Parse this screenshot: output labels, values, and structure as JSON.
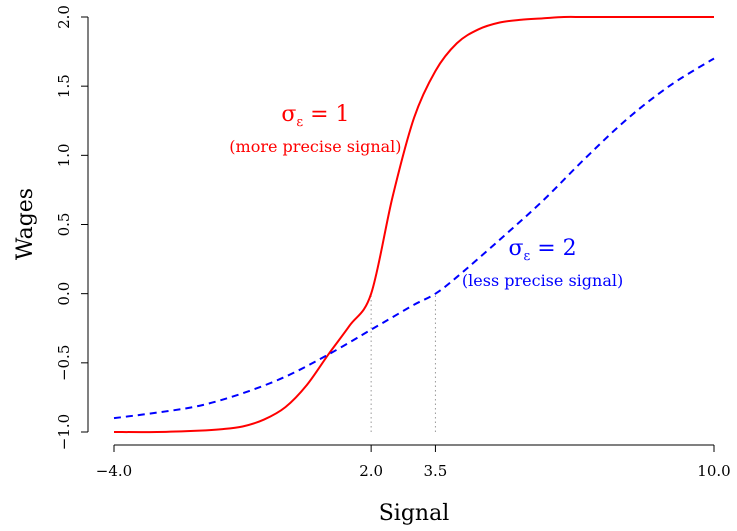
{
  "chart_data": {
    "type": "line",
    "xlabel": "Signal",
    "ylabel": "Wages",
    "xlim": [
      -4.0,
      10.0
    ],
    "ylim": [
      -1.0,
      2.0
    ],
    "x_ticks": [
      -4.0,
      2.0,
      3.5,
      10.0
    ],
    "x_tick_labels": [
      "−4.0",
      "2.0",
      "3.5",
      "10.0"
    ],
    "y_ticks": [
      -1.0,
      -0.5,
      0.0,
      0.5,
      1.0,
      1.5,
      2.0
    ],
    "y_tick_labels": [
      "−1.0",
      "−0.5",
      "0.0",
      "0.5",
      "1.0",
      "1.5",
      "2.0"
    ],
    "grid": false,
    "series": [
      {
        "color": "#ff0000",
        "dash": "solid",
        "x": [
          -4.0,
          -3.0,
          -2.0,
          -1.5,
          -1.0,
          -0.5,
          0.0,
          0.5,
          1.0,
          1.5,
          2.0,
          2.5,
          3.0,
          3.5,
          4.0,
          4.5,
          5.0,
          5.5,
          6.0,
          6.5,
          7.0,
          8.0,
          9.0,
          10.0
        ],
        "y": [
          -1.0,
          -1.0,
          -0.99,
          -0.98,
          -0.96,
          -0.91,
          -0.82,
          -0.66,
          -0.44,
          -0.23,
          0.0,
          0.7,
          1.27,
          1.61,
          1.81,
          1.91,
          1.96,
          1.98,
          1.99,
          2.0,
          2.0,
          2.0,
          2.0,
          2.0
        ]
      },
      {
        "color": "#0000ff",
        "dash": "dashed",
        "x": [
          -4.0,
          -3.0,
          -2.0,
          -1.0,
          0.0,
          1.0,
          2.0,
          2.5,
          3.0,
          3.5,
          4.0,
          5.0,
          6.0,
          7.0,
          8.0,
          9.0,
          10.0
        ],
        "y": [
          -0.9,
          -0.86,
          -0.81,
          -0.72,
          -0.6,
          -0.44,
          -0.26,
          -0.17,
          -0.08,
          0.0,
          0.12,
          0.39,
          0.67,
          0.98,
          1.27,
          1.51,
          1.7
        ]
      }
    ],
    "reference_lines": [
      {
        "x": 2.0,
        "y_from": -1.0,
        "y_to": 0.0,
        "style": "dotted"
      },
      {
        "x": 3.5,
        "y_from": -1.0,
        "y_to": 0.0,
        "style": "dotted"
      }
    ],
    "annotations": [
      {
        "color": "#ff0000",
        "main_prefix": "σ",
        "main_sub": "ε",
        "main_suffix": " = 1",
        "sub": "(more precise signal)",
        "x": 0.7,
        "y": 1.25
      },
      {
        "color": "#0000ff",
        "main_prefix": "σ",
        "main_sub": "ε",
        "main_suffix": " = 2",
        "sub": "(less precise signal)",
        "x": 6.0,
        "y": 0.28
      }
    ]
  }
}
